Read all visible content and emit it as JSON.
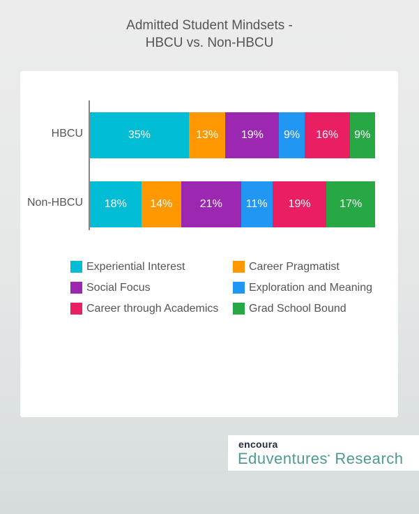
{
  "title_line1": "Admitted Student Mindsets -",
  "title_line2": "HBCU vs. Non-HBCU",
  "chart_data": {
    "type": "bar",
    "orientation": "horizontal",
    "stacked": true,
    "title": "Admitted Student Mindsets - HBCU vs. Non-HBCU",
    "categories": [
      "HBCU",
      "Non-HBCU"
    ],
    "series": [
      {
        "name": "Experiential Interest",
        "color": "#00bcd4",
        "values": [
          35,
          18
        ],
        "labels": [
          "35%",
          "18%"
        ]
      },
      {
        "name": "Career Pragmatist",
        "color": "#ff9800",
        "values": [
          13,
          14
        ],
        "labels": [
          "13%",
          "14%"
        ]
      },
      {
        "name": "Social Focus",
        "color": "#9c27b0",
        "values": [
          19,
          21
        ],
        "labels": [
          "19%",
          "21%"
        ]
      },
      {
        "name": "Exploration and Meaning",
        "color": "#2196f3",
        "values": [
          9,
          11
        ],
        "labels": [
          "9%",
          "11%"
        ]
      },
      {
        "name": "Career through Academics",
        "color": "#e91e63",
        "values": [
          16,
          19
        ],
        "labels": [
          "16%",
          "19%"
        ]
      },
      {
        "name": "Grad School Bound",
        "color": "#27a845",
        "values": [
          9,
          17
        ],
        "labels": [
          "9%",
          "17%"
        ]
      }
    ],
    "xlabel": "",
    "ylabel": "",
    "grid": false,
    "legend_position": "bottom"
  },
  "legend": [
    {
      "label": "Experiential Interest",
      "color": "#00bcd4"
    },
    {
      "label": "Career Pragmatist",
      "color": "#ff9800"
    },
    {
      "label": "Social Focus",
      "color": "#9c27b0"
    },
    {
      "label": "Exploration and Meaning",
      "color": "#2196f3"
    },
    {
      "label": "Career through Academics",
      "color": "#e91e63"
    },
    {
      "label": "Grad School Bound",
      "color": "#27a845"
    }
  ],
  "logo": {
    "brand": "encoura",
    "product": "Eduventures",
    "product_suffix": "Research"
  }
}
